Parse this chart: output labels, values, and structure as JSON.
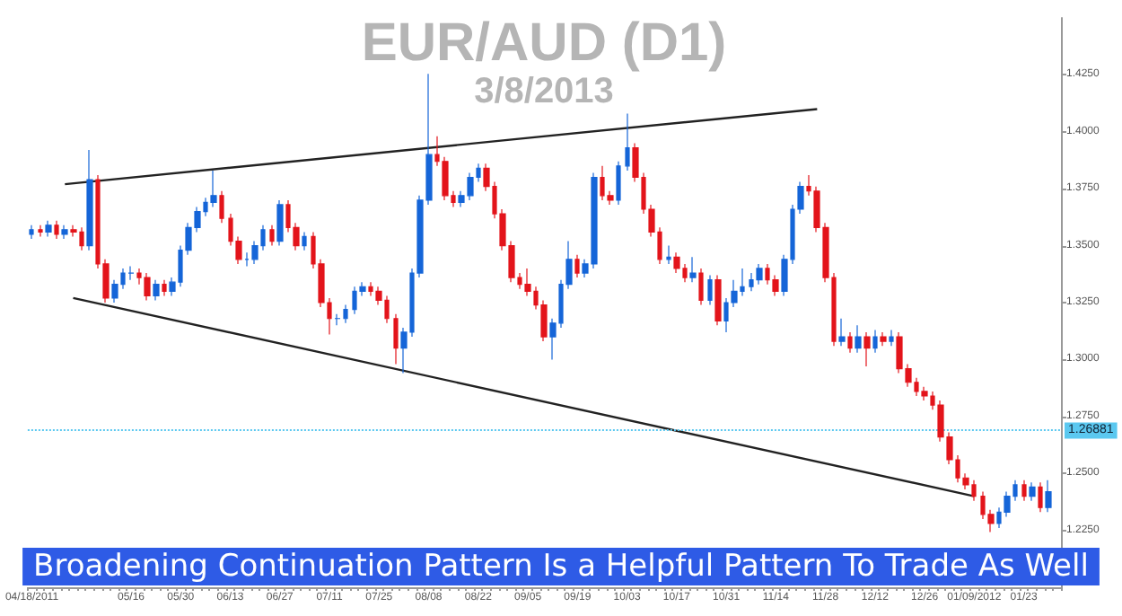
{
  "chart_data": {
    "type": "candlestick",
    "title": "EUR/AUD (D1)",
    "subtitle": "3/8/2013",
    "annotations": [
      "Broadening Continuation Pattern Is a Helpful Pattern To Trade As Well"
    ],
    "categories": [
      "04/18/2011",
      null,
      null,
      null,
      null,
      null,
      null,
      null,
      null,
      null,
      null,
      null,
      "05/16",
      null,
      null,
      null,
      null,
      null,
      "05/30",
      null,
      null,
      null,
      null,
      null,
      "06/13",
      null,
      null,
      null,
      null,
      null,
      "06/27",
      null,
      null,
      null,
      null,
      null,
      "07/11",
      null,
      null,
      null,
      null,
      null,
      "07/25",
      null,
      null,
      null,
      null,
      null,
      "08/08",
      null,
      null,
      null,
      null,
      null,
      "08/22",
      null,
      null,
      null,
      null,
      null,
      "09/05",
      null,
      null,
      null,
      null,
      null,
      "09/19",
      null,
      null,
      null,
      null,
      null,
      "10/03",
      null,
      null,
      null,
      null,
      null,
      "10/17",
      null,
      null,
      null,
      null,
      null,
      "10/31",
      null,
      null,
      null,
      null,
      null,
      "11/14",
      null,
      null,
      null,
      null,
      null,
      "11/28",
      null,
      null,
      null,
      null,
      null,
      "12/12",
      null,
      null,
      null,
      null,
      null,
      "12/26",
      null,
      null,
      null,
      null,
      null,
      "01/09/2012",
      null,
      null,
      null,
      null,
      null,
      "01/23",
      null,
      null,
      null
    ],
    "ohlc": [
      [
        1.355,
        1.359,
        1.353,
        1.357
      ],
      [
        1.357,
        1.359,
        1.354,
        1.356
      ],
      [
        1.356,
        1.361,
        1.354,
        1.359
      ],
      [
        1.359,
        1.361,
        1.353,
        1.355
      ],
      [
        1.355,
        1.359,
        1.353,
        1.357
      ],
      [
        1.357,
        1.359,
        1.354,
        1.356
      ],
      [
        1.356,
        1.358,
        1.348,
        1.35
      ],
      [
        1.35,
        1.392,
        1.348,
        1.379
      ],
      [
        1.379,
        1.381,
        1.34,
        1.342
      ],
      [
        1.342,
        1.344,
        1.325,
        1.327
      ],
      [
        1.327,
        1.335,
        1.325,
        1.333
      ],
      [
        1.333,
        1.34,
        1.331,
        1.338
      ],
      [
        1.338,
        1.341,
        1.335,
        1.338
      ],
      [
        1.338,
        1.34,
        1.333,
        1.336
      ],
      [
        1.336,
        1.338,
        1.326,
        1.328
      ],
      [
        1.328,
        1.335,
        1.326,
        1.333
      ],
      [
        1.333,
        1.335,
        1.328,
        1.33
      ],
      [
        1.33,
        1.336,
        1.328,
        1.334
      ],
      [
        1.334,
        1.35,
        1.332,
        1.348
      ],
      [
        1.348,
        1.36,
        1.346,
        1.358
      ],
      [
        1.358,
        1.367,
        1.356,
        1.365
      ],
      [
        1.365,
        1.371,
        1.363,
        1.369
      ],
      [
        1.369,
        1.383,
        1.367,
        1.372
      ],
      [
        1.372,
        1.374,
        1.36,
        1.362
      ],
      [
        1.362,
        1.364,
        1.35,
        1.352
      ],
      [
        1.352,
        1.354,
        1.342,
        1.344
      ],
      [
        1.344,
        1.347,
        1.341,
        1.344
      ],
      [
        1.344,
        1.352,
        1.342,
        1.35
      ],
      [
        1.35,
        1.359,
        1.348,
        1.357
      ],
      [
        1.357,
        1.359,
        1.35,
        1.352
      ],
      [
        1.352,
        1.37,
        1.35,
        1.368
      ],
      [
        1.368,
        1.37,
        1.356,
        1.358
      ],
      [
        1.358,
        1.36,
        1.348,
        1.35
      ],
      [
        1.35,
        1.356,
        1.348,
        1.354
      ],
      [
        1.354,
        1.356,
        1.34,
        1.342
      ],
      [
        1.342,
        1.344,
        1.323,
        1.325
      ],
      [
        1.325,
        1.327,
        1.311,
        1.318
      ],
      [
        1.318,
        1.32,
        1.315,
        1.318
      ],
      [
        1.318,
        1.324,
        1.316,
        1.322
      ],
      [
        1.322,
        1.332,
        1.32,
        1.33
      ],
      [
        1.33,
        1.334,
        1.328,
        1.332
      ],
      [
        1.332,
        1.334,
        1.328,
        1.33
      ],
      [
        1.33,
        1.332,
        1.324,
        1.326
      ],
      [
        1.326,
        1.328,
        1.316,
        1.318
      ],
      [
        1.318,
        1.32,
        1.298,
        1.305
      ],
      [
        1.305,
        1.314,
        1.294,
        1.312
      ],
      [
        1.312,
        1.34,
        1.31,
        1.338
      ],
      [
        1.338,
        1.372,
        1.336,
        1.37
      ],
      [
        1.37,
        1.4255,
        1.368,
        1.39
      ],
      [
        1.39,
        1.398,
        1.385,
        1.387
      ],
      [
        1.387,
        1.389,
        1.37,
        1.372
      ],
      [
        1.372,
        1.374,
        1.367,
        1.369
      ],
      [
        1.369,
        1.374,
        1.367,
        1.372
      ],
      [
        1.372,
        1.382,
        1.37,
        1.38
      ],
      [
        1.38,
        1.386,
        1.378,
        1.384
      ],
      [
        1.384,
        1.386,
        1.374,
        1.376
      ],
      [
        1.376,
        1.378,
        1.362,
        1.364
      ],
      [
        1.364,
        1.366,
        1.348,
        1.35
      ],
      [
        1.35,
        1.352,
        1.334,
        1.336
      ],
      [
        1.336,
        1.338,
        1.331,
        1.333
      ],
      [
        1.333,
        1.34,
        1.328,
        1.33
      ],
      [
        1.33,
        1.332,
        1.322,
        1.324
      ],
      [
        1.324,
        1.326,
        1.308,
        1.31
      ],
      [
        1.31,
        1.318,
        1.3,
        1.316
      ],
      [
        1.316,
        1.335,
        1.314,
        1.333
      ],
      [
        1.333,
        1.352,
        1.331,
        1.344
      ],
      [
        1.344,
        1.346,
        1.336,
        1.338
      ],
      [
        1.338,
        1.344,
        1.336,
        1.342
      ],
      [
        1.342,
        1.382,
        1.34,
        1.38
      ],
      [
        1.38,
        1.385,
        1.37,
        1.372
      ],
      [
        1.372,
        1.374,
        1.368,
        1.37
      ],
      [
        1.37,
        1.387,
        1.368,
        1.385
      ],
      [
        1.385,
        1.408,
        1.383,
        1.393
      ],
      [
        1.393,
        1.395,
        1.378,
        1.38
      ],
      [
        1.38,
        1.382,
        1.364,
        1.366
      ],
      [
        1.366,
        1.368,
        1.354,
        1.356
      ],
      [
        1.356,
        1.358,
        1.342,
        1.344
      ],
      [
        1.344,
        1.35,
        1.342,
        1.345
      ],
      [
        1.345,
        1.347,
        1.338,
        1.34
      ],
      [
        1.34,
        1.342,
        1.334,
        1.336
      ],
      [
        1.336,
        1.345,
        1.334,
        1.338
      ],
      [
        1.338,
        1.34,
        1.324,
        1.326
      ],
      [
        1.326,
        1.337,
        1.324,
        1.335
      ],
      [
        1.335,
        1.337,
        1.315,
        1.317
      ],
      [
        1.317,
        1.327,
        1.312,
        1.325
      ],
      [
        1.325,
        1.335,
        1.323,
        1.33
      ],
      [
        1.33,
        1.34,
        1.328,
        1.332
      ],
      [
        1.332,
        1.338,
        1.33,
        1.335
      ],
      [
        1.335,
        1.342,
        1.333,
        1.34
      ],
      [
        1.34,
        1.342,
        1.333,
        1.335
      ],
      [
        1.335,
        1.337,
        1.328,
        1.33
      ],
      [
        1.33,
        1.346,
        1.328,
        1.344
      ],
      [
        1.344,
        1.368,
        1.342,
        1.366
      ],
      [
        1.366,
        1.378,
        1.364,
        1.376
      ],
      [
        1.376,
        1.381,
        1.372,
        1.374
      ],
      [
        1.374,
        1.376,
        1.356,
        1.358
      ],
      [
        1.358,
        1.36,
        1.334,
        1.336
      ],
      [
        1.336,
        1.338,
        1.306,
        1.308
      ],
      [
        1.308,
        1.318,
        1.306,
        1.31
      ],
      [
        1.31,
        1.312,
        1.303,
        1.305
      ],
      [
        1.305,
        1.315,
        1.303,
        1.31
      ],
      [
        1.31,
        1.312,
        1.297,
        1.305
      ],
      [
        1.305,
        1.313,
        1.303,
        1.31
      ],
      [
        1.31,
        1.312,
        1.306,
        1.308
      ],
      [
        1.308,
        1.313,
        1.306,
        1.31
      ],
      [
        1.31,
        1.312,
        1.294,
        1.296
      ],
      [
        1.296,
        1.298,
        1.288,
        1.29
      ],
      [
        1.29,
        1.292,
        1.284,
        1.286
      ],
      [
        1.286,
        1.288,
        1.282,
        1.284
      ],
      [
        1.284,
        1.286,
        1.278,
        1.28
      ],
      [
        1.28,
        1.282,
        1.264,
        1.266
      ],
      [
        1.266,
        1.268,
        1.254,
        1.256
      ],
      [
        1.256,
        1.258,
        1.246,
        1.248
      ],
      [
        1.248,
        1.25,
        1.243,
        1.245
      ],
      [
        1.245,
        1.247,
        1.238,
        1.24
      ],
      [
        1.24,
        1.242,
        1.23,
        1.232
      ],
      [
        1.232,
        1.234,
        1.2243,
        1.228
      ],
      [
        1.228,
        1.235,
        1.226,
        1.233
      ],
      [
        1.233,
        1.242,
        1.231,
        1.24
      ],
      [
        1.24,
        1.247,
        1.238,
        1.245
      ],
      [
        1.245,
        1.247,
        1.238,
        1.24
      ],
      [
        1.24,
        1.246,
        1.238,
        1.244
      ],
      [
        1.244,
        1.246,
        1.233,
        1.235
      ],
      [
        1.235,
        1.247,
        1.233,
        1.242
      ]
    ],
    "series": [
      {
        "type": "line",
        "color": "#222222",
        "values": [
          null,
          null,
          null,
          null,
          1.377,
          null,
          null,
          null,
          null,
          null,
          null,
          null,
          null,
          null,
          null,
          null,
          null,
          null,
          null,
          null,
          null,
          null,
          null,
          null,
          null,
          null,
          null,
          null,
          null,
          null,
          null,
          null,
          null,
          null,
          null,
          null,
          null,
          null,
          null,
          null,
          null,
          null,
          null,
          null,
          null,
          null,
          null,
          null,
          null,
          null,
          null,
          null,
          null,
          null,
          null,
          null,
          null,
          null,
          null,
          null,
          null,
          null,
          null,
          null,
          null,
          null,
          null,
          null,
          null,
          null,
          null,
          null,
          null,
          null,
          null,
          null,
          null,
          null,
          null,
          null,
          null,
          null,
          null,
          null,
          null,
          null,
          null,
          null,
          null,
          null,
          null,
          null,
          null,
          null,
          null,
          1.41,
          null,
          null,
          null,
          null,
          null,
          null,
          null,
          null,
          null,
          null,
          null,
          null,
          null,
          null,
          null,
          null,
          null,
          null,
          null,
          null,
          null,
          null,
          null,
          null,
          null,
          null,
          null,
          null
        ]
      },
      {
        "type": "line",
        "color": "#222222",
        "values": [
          null,
          null,
          null,
          null,
          null,
          1.327,
          null,
          null,
          null,
          null,
          null,
          null,
          null,
          null,
          null,
          null,
          null,
          null,
          null,
          null,
          null,
          null,
          null,
          null,
          null,
          null,
          null,
          null,
          null,
          null,
          null,
          null,
          null,
          null,
          null,
          null,
          null,
          null,
          null,
          null,
          null,
          null,
          null,
          null,
          null,
          null,
          null,
          null,
          null,
          null,
          null,
          null,
          null,
          null,
          null,
          null,
          null,
          null,
          null,
          null,
          null,
          null,
          null,
          null,
          null,
          null,
          null,
          null,
          null,
          null,
          null,
          null,
          null,
          null,
          null,
          null,
          null,
          null,
          null,
          null,
          null,
          null,
          null,
          null,
          null,
          null,
          null,
          null,
          null,
          null,
          null,
          null,
          null,
          null,
          null,
          null,
          null,
          null,
          null,
          null,
          null,
          null,
          null,
          null,
          null,
          null,
          null,
          null,
          null,
          null,
          null,
          null,
          null,
          null,
          1.24,
          null,
          null,
          null,
          null,
          null,
          null,
          null,
          null,
          null
        ]
      }
    ],
    "ylim": [
      1.2,
      1.45
    ],
    "yticks": [
      {
        "value": 1.225,
        "label": "1.2250"
      },
      {
        "value": 1.25,
        "label": "1.2500"
      },
      {
        "value": 1.275,
        "label": "1.2750"
      },
      {
        "value": 1.3,
        "label": "1.3000"
      },
      {
        "value": 1.325,
        "label": "1.3250"
      },
      {
        "value": 1.35,
        "label": "1.3500"
      },
      {
        "value": 1.375,
        "label": "1.3750"
      },
      {
        "value": 1.4,
        "label": "1.4000"
      },
      {
        "value": 1.425,
        "label": "1.4250"
      }
    ],
    "ref_lines": [
      {
        "axis": "y",
        "value": 1.26881,
        "label": "1.26881",
        "color": "#5bc8f0",
        "line_style": "dotted"
      }
    ],
    "marker": "none",
    "line_style": "solid",
    "grid": false
  }
}
